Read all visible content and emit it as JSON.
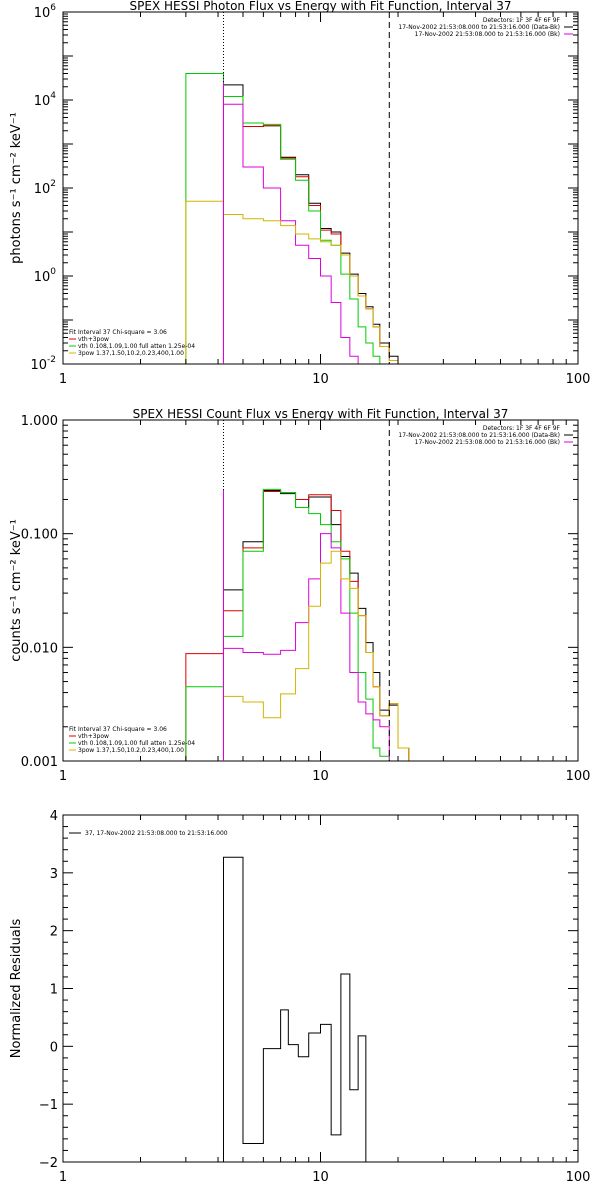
{
  "colors": {
    "black": "#000000",
    "red": "#dd0000",
    "green": "#00cc00",
    "magenta": "#dd00dd",
    "yellow": "#d4b400"
  },
  "chart_data": [
    {
      "type": "line",
      "title": "SPEX HESSI Photon Flux vs Energy with Fit Function, Interval 37",
      "ylabel": "photons s⁻¹ cm⁻² keV⁻¹",
      "xlabel": "",
      "x_log": true,
      "y_log": true,
      "xlim": [
        1,
        100
      ],
      "ylim": [
        0.01,
        1000000
      ],
      "xticks": [
        "1",
        "10",
        "100"
      ],
      "yticks": [
        {
          "base": "10",
          "exp": "6",
          "value": 1000000
        },
        {
          "base": "10",
          "exp": "4",
          "value": 10000
        },
        {
          "base": "10",
          "exp": "2",
          "value": 100
        },
        {
          "base": "10",
          "exp": "0",
          "value": 1
        },
        {
          "base": "10",
          "exp": "-2",
          "value": 0.01
        }
      ],
      "vlines": [
        {
          "x": 4.2,
          "style": "dotted"
        },
        {
          "x": 18.5,
          "style": "dashed"
        }
      ],
      "magenta_vline": 4.2,
      "header": [
        "Detectors: 1F 3F 4F 6F 9F",
        "17-Nov-2002 21:53:08.000 to 21:53:16.000 (Data-Bk)",
        "17-Nov-2002 21:53:08.000 to 21:53:16.000 (Bk)"
      ],
      "legend": [
        "Fit Interval 37    Chi-square = 3.06",
        "vth+3pow",
        "vth 0.108,1.09,1.00  full atten 1.25e-04",
        "3pow 1.37,1.50,10.2,0.23,400,1.00"
      ],
      "bin_edges": [
        3.0,
        3.5,
        4.2,
        5.0,
        6.0,
        7.0,
        8.0,
        9.0,
        10.0,
        11.0,
        12.0,
        13.0,
        14.0,
        15.0,
        16.0,
        17.0,
        18.5,
        20.0,
        22.0
      ],
      "series": [
        {
          "color": "black",
          "values": [
            null,
            null,
            22000,
            2500,
            2600,
            500,
            200,
            45,
            12,
            10,
            3.3,
            1.1,
            0.4,
            0.2,
            0.08,
            0.03,
            0.015,
            null
          ]
        },
        {
          "color": "red",
          "values": [
            null,
            null,
            12000,
            2500,
            2600,
            480,
            180,
            40,
            11,
            9,
            3.0,
            1.0,
            0.35,
            0.18,
            0.07,
            0.025,
            0.012,
            0.01
          ]
        },
        {
          "color": "green",
          "values": [
            40000,
            40000,
            12000,
            3000,
            2800,
            450,
            150,
            30,
            6.5,
            5,
            1.1,
            0.3,
            0.07,
            0.03,
            0.015,
            0.01,
            null,
            null
          ]
        },
        {
          "color": "magenta",
          "values": [
            null,
            null,
            8000,
            300,
            100,
            18,
            5,
            2.5,
            1.0,
            0.25,
            0.04,
            0.015,
            0.01,
            null,
            null,
            null,
            null,
            null
          ]
        },
        {
          "color": "yellow",
          "values": [
            50,
            50,
            25,
            20,
            18,
            14,
            9,
            7,
            6,
            5,
            3.0,
            1.0,
            0.35,
            0.18,
            0.07,
            0.025,
            0.012,
            0.01
          ]
        }
      ]
    },
    {
      "type": "line",
      "title": "SPEX HESSI Count Flux vs Energy with Fit Function, Interval 37",
      "ylabel": "counts s⁻¹ cm⁻² keV⁻¹",
      "xlabel": "",
      "x_log": true,
      "y_log": true,
      "xlim": [
        1,
        100
      ],
      "ylim": [
        0.001,
        1.0
      ],
      "xticks": [
        "1",
        "10",
        "100"
      ],
      "yticks": [
        {
          "label": "1.000",
          "value": 1.0
        },
        {
          "label": "0.100",
          "value": 0.1
        },
        {
          "label": "0.010",
          "value": 0.01
        },
        {
          "label": "0.001",
          "value": 0.001
        }
      ],
      "vlines": [
        {
          "x": 4.2,
          "style": "dotted"
        },
        {
          "x": 18.5,
          "style": "dashed"
        }
      ],
      "magenta_vline": 4.2,
      "header": [
        "Detectors: 1F 3F 4F 6F 9F",
        "17-Nov-2002 21:53:08.000 to 21:53:16.000 (Data-Bk)",
        "17-Nov-2002 21:53:08.000 to 21:53:16.000 (Bk)"
      ],
      "legend": [
        "Fit Interval 37    Chi-square = 3.06",
        "vth+3pow",
        "vth 0.108,1.09,1.00  full atten 1.25e-04",
        "3pow 1.37,1.50,10.2,0.23,400,1.00"
      ],
      "bin_edges": [
        3.0,
        3.5,
        4.2,
        5.0,
        6.0,
        7.0,
        8.0,
        9.0,
        10.0,
        11.0,
        12.0,
        13.0,
        14.0,
        15.0,
        16.0,
        17.0,
        18.5,
        20.0,
        22.0
      ],
      "series": [
        {
          "color": "black",
          "values": [
            null,
            null,
            0.032,
            0.085,
            0.24,
            0.225,
            0.17,
            0.21,
            0.21,
            0.12,
            0.063,
            0.045,
            0.022,
            0.011,
            0.006,
            0.0028,
            0.0031,
            0.0013
          ]
        },
        {
          "color": "red",
          "values": [
            0.0088,
            0.0088,
            0.021,
            0.075,
            0.235,
            0.23,
            0.2,
            0.22,
            0.22,
            0.16,
            0.07,
            0.038,
            0.019,
            0.009,
            0.0045,
            0.0025,
            0.0032,
            0.0013
          ]
        },
        {
          "color": "green",
          "values": [
            0.0045,
            0.0045,
            0.0125,
            0.07,
            0.245,
            0.23,
            0.17,
            0.15,
            0.12,
            0.085,
            0.06,
            0.02,
            0.006,
            0.0035,
            0.0013,
            0.0011,
            0.001,
            null
          ]
        },
        {
          "color": "magenta",
          "values": [
            null,
            null,
            0.0098,
            0.009,
            0.0087,
            0.0094,
            0.0165,
            0.04,
            0.1,
            0.075,
            0.02,
            0.006,
            0.0033,
            0.0026,
            0.0023,
            0.002,
            null,
            null
          ]
        },
        {
          "color": "yellow",
          "values": [
            null,
            null,
            0.0037,
            0.0033,
            0.0024,
            0.0039,
            0.0065,
            0.023,
            0.055,
            0.07,
            0.04,
            0.033,
            0.019,
            0.009,
            0.0045,
            0.0025,
            0.0032,
            0.0013
          ]
        }
      ]
    },
    {
      "type": "line",
      "title": "",
      "ylabel": "Normalized Residuals",
      "xlabel": "",
      "x_log": true,
      "y_log": false,
      "xlim": [
        1,
        100
      ],
      "ylim": [
        -2,
        4
      ],
      "xticks": [
        "1",
        "10",
        "100"
      ],
      "yticks": [
        {
          "label": "4",
          "value": 4
        },
        {
          "label": "3",
          "value": 3
        },
        {
          "label": "2",
          "value": 2
        },
        {
          "label": "1",
          "value": 1
        },
        {
          "label": "0",
          "value": 0
        },
        {
          "label": "−1",
          "value": -1
        },
        {
          "label": "−2",
          "value": -2
        }
      ],
      "legend_line": "37, 17-Nov-2002 21:53:08.000 to 21:53:16.000",
      "bin_edges": [
        4.2,
        5.0,
        6.0,
        7.0,
        7.5,
        8.2,
        9.0,
        10.0,
        11.0,
        12.0,
        13.0,
        14.0,
        15.0,
        16.0,
        17.0,
        18.5
      ],
      "values": [
        3.27,
        -1.68,
        -0.04,
        0.63,
        0.03,
        -0.18,
        0.23,
        0.38,
        -1.53,
        1.25,
        -0.75,
        0.18,
        -2.0,
        null,
        null
      ]
    }
  ]
}
